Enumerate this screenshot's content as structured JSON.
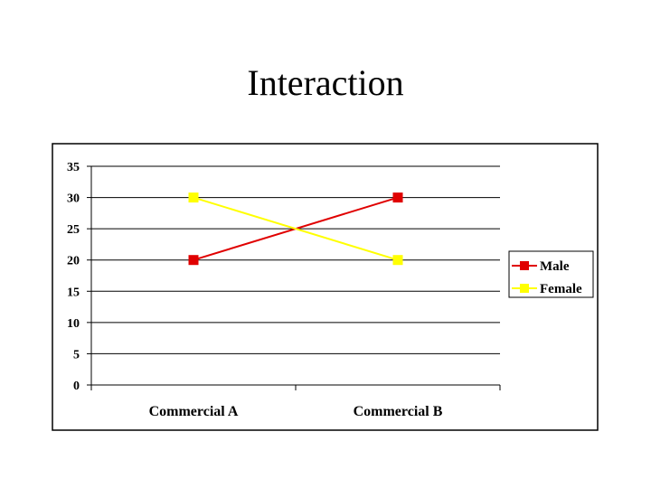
{
  "slide": {
    "title": "Interaction"
  },
  "chart_data": {
    "type": "line",
    "title": "",
    "xlabel": "",
    "ylabel": "",
    "categories": [
      "Commercial A",
      "Commercial B"
    ],
    "ylim": [
      0,
      35
    ],
    "yticks": [
      0,
      5,
      10,
      15,
      20,
      25,
      30,
      35
    ],
    "grid": true,
    "legend_position": "right",
    "series": [
      {
        "name": "Male",
        "values": [
          20,
          30
        ],
        "color": "#e00000",
        "marker": "square"
      },
      {
        "name": "Female",
        "values": [
          30,
          20
        ],
        "color": "#ffff00",
        "marker": "square"
      }
    ]
  }
}
